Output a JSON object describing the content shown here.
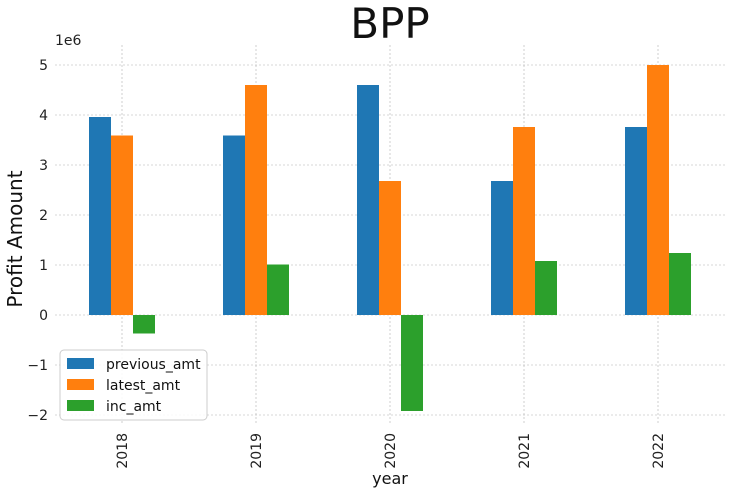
{
  "chart_data": {
    "type": "bar",
    "title": "BPP",
    "xlabel": "year",
    "ylabel": "Profit Amount",
    "y_scale_label": "1e6",
    "categories": [
      "2018",
      "2019",
      "2020",
      "2021",
      "2022"
    ],
    "series": [
      {
        "name": "previous_amt",
        "color": "#1f77b4",
        "values": [
          3960000,
          3590000,
          4600000,
          2680000,
          3760000
        ]
      },
      {
        "name": "latest_amt",
        "color": "#ff7f0e",
        "values": [
          3590000,
          4600000,
          2680000,
          3760000,
          5000000
        ]
      },
      {
        "name": "inc_amt",
        "color": "#2ca02c",
        "values": [
          -370000,
          1010000,
          -1920000,
          1080000,
          1240000
        ]
      }
    ],
    "yticks": [
      "−2",
      "−1",
      "0",
      "1",
      "2",
      "3",
      "4",
      "5"
    ],
    "ylim": [
      -2200000,
      5400000
    ],
    "grid": true,
    "legend_position": "lower-left"
  }
}
